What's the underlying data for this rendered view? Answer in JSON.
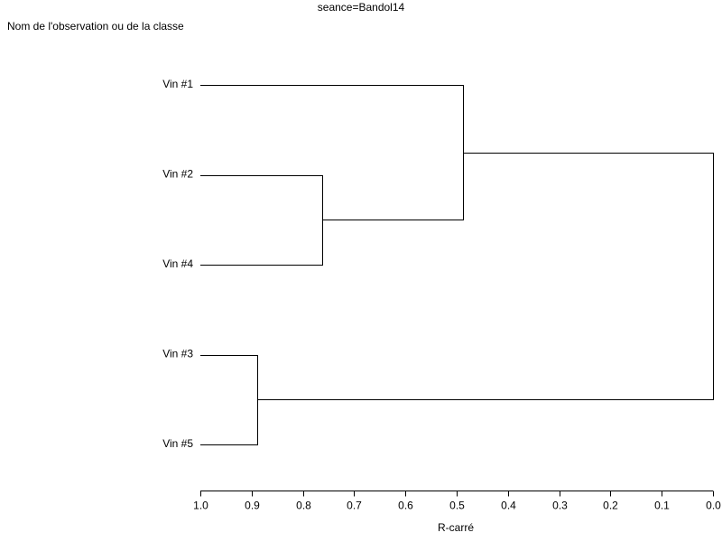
{
  "chart_data": {
    "type": "dendrogram",
    "title": "seance=Bandol14",
    "y_label": "Nom de l'observation ou de la classe",
    "x_label": "R-carré",
    "leaves": [
      "Vin #1",
      "Vin #2",
      "Vin #4",
      "Vin #3",
      "Vin #5"
    ],
    "merges": [
      {
        "children": [
          1,
          2
        ],
        "value": 0.762
      },
      {
        "children": [
          0,
          5
        ],
        "value": 0.488
      },
      {
        "children": [
          3,
          4
        ],
        "value": 0.889
      },
      {
        "children": [
          6,
          7
        ],
        "value": 0
      }
    ],
    "xlim": [
      1,
      0
    ],
    "xticks": [
      {
        "value": 1,
        "label": "1.0"
      },
      {
        "value": 0.9,
        "label": "0.9"
      },
      {
        "value": 0.8,
        "label": "0.8"
      },
      {
        "value": 0.7,
        "label": "0.7"
      },
      {
        "value": 0.6,
        "label": "0.6"
      },
      {
        "value": 0.5,
        "label": "0.5"
      },
      {
        "value": 0.4,
        "label": "0.4"
      },
      {
        "value": 0.3,
        "label": "0.3"
      },
      {
        "value": 0.2,
        "label": "0.2"
      },
      {
        "value": 0.1,
        "label": "0.1"
      },
      {
        "value": 0,
        "label": "0.0"
      }
    ],
    "color": "#000000"
  }
}
